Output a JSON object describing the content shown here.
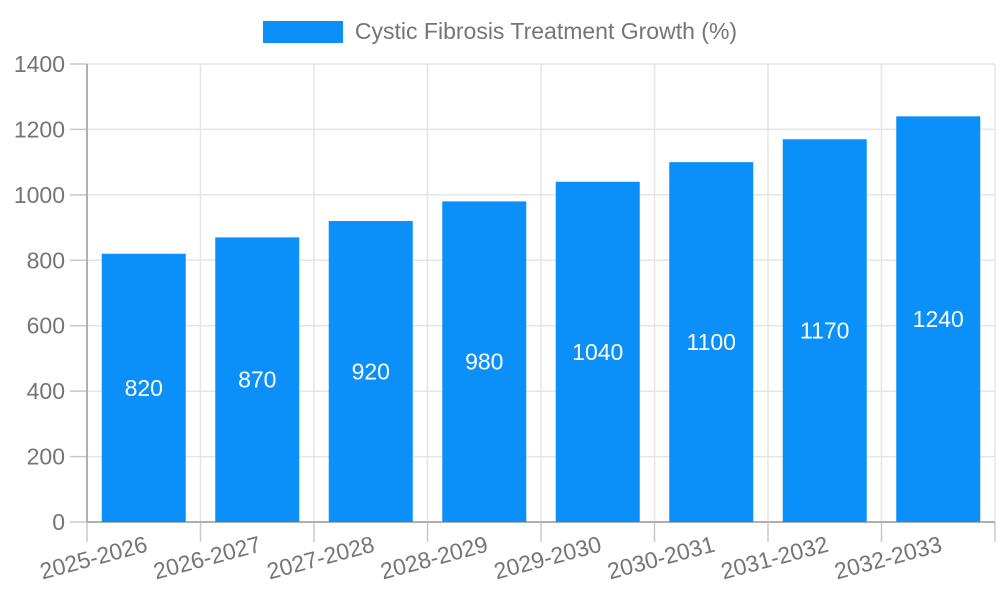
{
  "chart_data": {
    "type": "bar",
    "title": "Cystic Fibrosis Treatment Growth (%)",
    "categories": [
      "2025-2026",
      "2026-2027",
      "2027-2028",
      "2028-2029",
      "2029-2030",
      "2030-2031",
      "2031-2032",
      "2032-2033"
    ],
    "values": [
      820,
      870,
      920,
      980,
      1040,
      1100,
      1170,
      1240
    ],
    "value_labels": [
      "820",
      "870",
      "920",
      "980",
      "1040",
      "1100",
      "1170",
      "1240"
    ],
    "ylim": [
      0,
      1400
    ],
    "yticks": [
      0,
      200,
      400,
      600,
      800,
      1000,
      1200,
      1400
    ],
    "x_label_rotation": -15,
    "grid": true,
    "legend_position": "top",
    "bar_color": "#0a90f8",
    "value_label_color": "#ffffff",
    "axis_text_color": "#757575",
    "gridline_color": "#e5e5e5",
    "tick_color": "#c8c8c8",
    "axis_line_color": "#b0b0b0"
  }
}
